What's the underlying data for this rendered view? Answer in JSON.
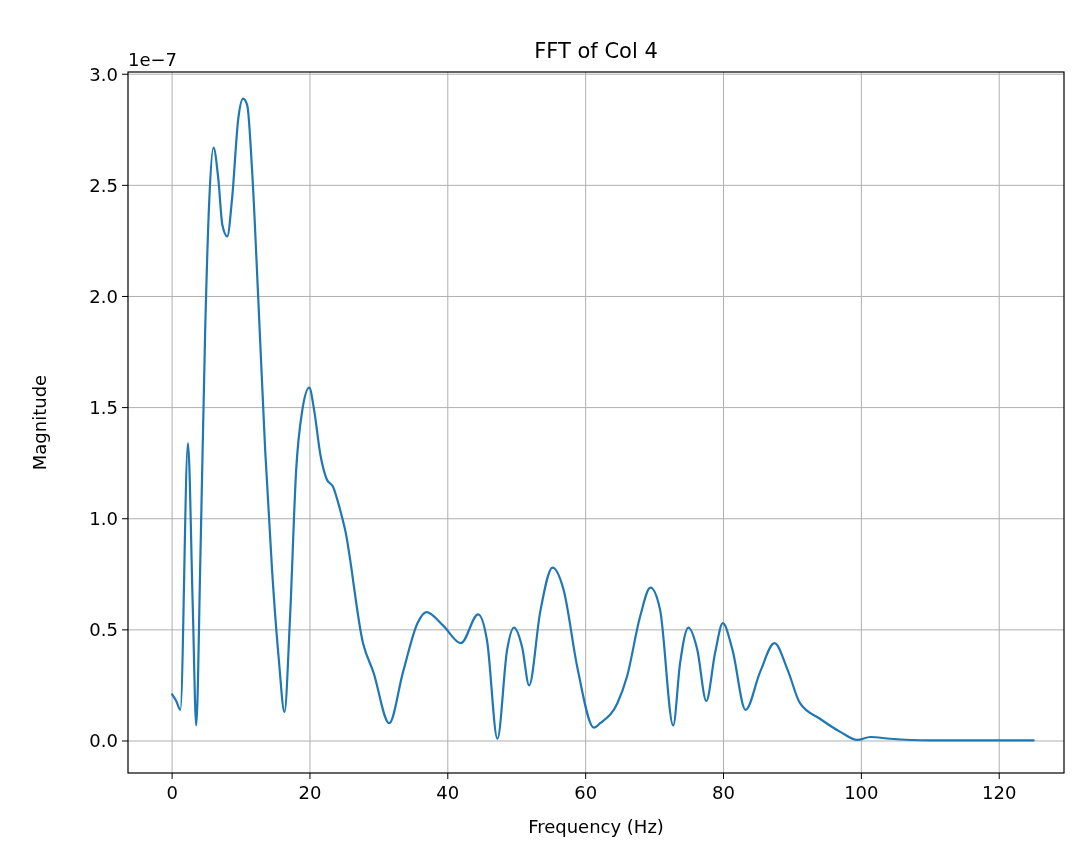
{
  "chart_data": {
    "type": "line",
    "title": "FFT of Col 4",
    "xlabel": "Frequency (Hz)",
    "ylabel": "Magnitude",
    "annotations": [
      "1e−7"
    ],
    "xlim": [
      -6.4,
      129.4
    ],
    "xticks": [
      0,
      20,
      40,
      60,
      80,
      100,
      120
    ],
    "ylim": [
      -0.144,
      3.01
    ],
    "yticks": [
      {
        "value": 0,
        "label": "0.0"
      },
      {
        "value": 0.5,
        "label": "0.5"
      },
      {
        "value": 1,
        "label": "1.0"
      },
      {
        "value": 1.5,
        "label": "1.5"
      },
      {
        "value": 2,
        "label": "2.0"
      },
      {
        "value": 2.5,
        "label": "2.5"
      },
      {
        "value": 3,
        "label": "3.0"
      }
    ],
    "grid": true,
    "series": [
      {
        "color": "#1f77b4",
        "x": [
          0,
          0.6,
          1.2,
          2.3,
          3.0,
          3.5,
          4.1,
          4.8,
          5.4,
          6.0,
          6.7,
          7.3,
          8.0,
          8.7,
          9.6,
          10.3,
          10.9,
          11.6,
          12.5,
          13.5,
          14.5,
          15.5,
          16.3,
          17.1,
          18.0,
          18.9,
          19.9,
          20.6,
          21.5,
          22.4,
          23.4,
          24.2,
          25.1,
          27.7,
          29.2,
          31.5,
          33.5,
          35.6,
          36.9,
          39.3,
          41.9,
          44.4,
          45.7,
          47.2,
          48.6,
          49.6,
          50.8,
          51.8,
          53.4,
          55.2,
          56.8,
          58.8,
          61.2,
          62.1,
          64.6,
          66.0,
          67.9,
          69.4,
          70.8,
          72.7,
          73.7,
          74.9,
          76.2,
          77.5,
          78.8,
          79.9,
          81.3,
          83.2,
          85.3,
          87.4,
          89.3,
          91.1,
          94.0,
          97.0,
          99.4,
          101.3,
          104.2,
          110,
          125
        ],
        "values": [
          0.21,
          0.18,
          0.14,
          1.34,
          0.6,
          0.07,
          0.82,
          1.85,
          2.44,
          2.67,
          2.53,
          2.32,
          2.27,
          2.44,
          2.8,
          2.89,
          2.86,
          2.57,
          1.99,
          1.31,
          0.77,
          0.36,
          0.13,
          0.55,
          1.22,
          1.49,
          1.59,
          1.49,
          1.29,
          1.18,
          1.14,
          1.06,
          0.95,
          0.44,
          0.31,
          0.08,
          0.31,
          0.53,
          0.58,
          0.52,
          0.44,
          0.57,
          0.45,
          0.01,
          0.41,
          0.51,
          0.42,
          0.25,
          0.58,
          0.78,
          0.68,
          0.33,
          0.06,
          0.08,
          0.17,
          0.29,
          0.56,
          0.69,
          0.59,
          0.07,
          0.35,
          0.51,
          0.41,
          0.18,
          0.4,
          0.53,
          0.41,
          0.14,
          0.31,
          0.44,
          0.32,
          0.17,
          0.1,
          0.04,
          0.005,
          0.018,
          0.01,
          0.003,
          0.003
        ]
      }
    ]
  }
}
